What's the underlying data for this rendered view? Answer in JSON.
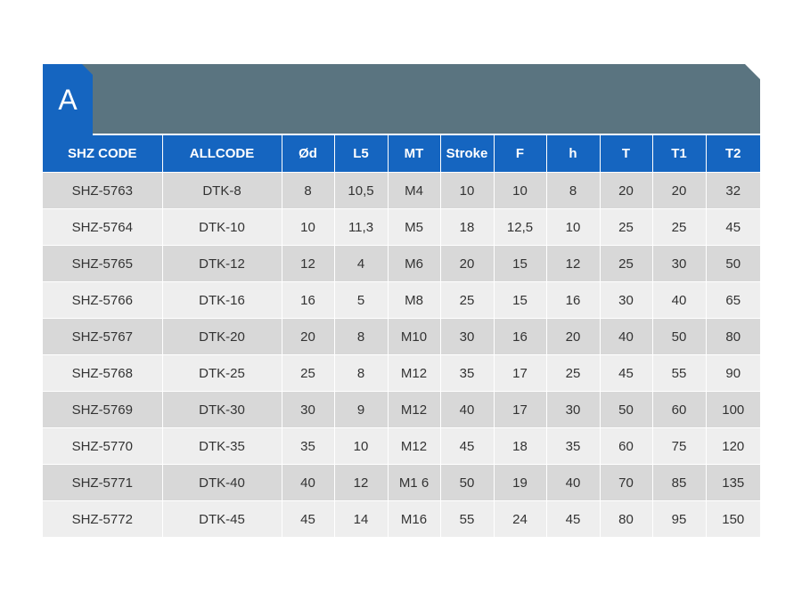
{
  "section": {
    "letter": "A"
  },
  "colors": {
    "header_blue": "#1565c0",
    "banner_slate": "#5a7480",
    "row_dark": "#d8d8d8",
    "row_light": "#eeeeee"
  },
  "table": {
    "headers": [
      "SHZ CODE",
      "ALLCODE",
      "Ød",
      "L5",
      "MT",
      "Stroke",
      "F",
      "h",
      "T",
      "T1",
      "T2"
    ],
    "rows": [
      [
        "SHZ-5763",
        "DTK-8",
        "8",
        "10,5",
        "M4",
        "10",
        "10",
        "8",
        "20",
        "20",
        "32"
      ],
      [
        "SHZ-5764",
        "DTK-10",
        "10",
        "11,3",
        "M5",
        "18",
        "12,5",
        "10",
        "25",
        "25",
        "45"
      ],
      [
        "SHZ-5765",
        "DTK-12",
        "12",
        "4",
        "M6",
        "20",
        "15",
        "12",
        "25",
        "30",
        "50"
      ],
      [
        "SHZ-5766",
        "DTK-16",
        "16",
        "5",
        "M8",
        "25",
        "15",
        "16",
        "30",
        "40",
        "65"
      ],
      [
        "SHZ-5767",
        "DTK-20",
        "20",
        "8",
        "M10",
        "30",
        "16",
        "20",
        "40",
        "50",
        "80"
      ],
      [
        "SHZ-5768",
        "DTK-25",
        "25",
        "8",
        "M12",
        "35",
        "17",
        "25",
        "45",
        "55",
        "90"
      ],
      [
        "SHZ-5769",
        "DTK-30",
        "30",
        "9",
        "M12",
        "40",
        "17",
        "30",
        "50",
        "60",
        "100"
      ],
      [
        "SHZ-5770",
        "DTK-35",
        "35",
        "10",
        "M12",
        "45",
        "18",
        "35",
        "60",
        "75",
        "120"
      ],
      [
        "SHZ-5771",
        "DTK-40",
        "40",
        "12",
        "M1 6",
        "50",
        "19",
        "40",
        "70",
        "85",
        "135"
      ],
      [
        "SHZ-5772",
        "DTK-45",
        "45",
        "14",
        "M16",
        "55",
        "24",
        "45",
        "80",
        "95",
        "150"
      ]
    ]
  }
}
